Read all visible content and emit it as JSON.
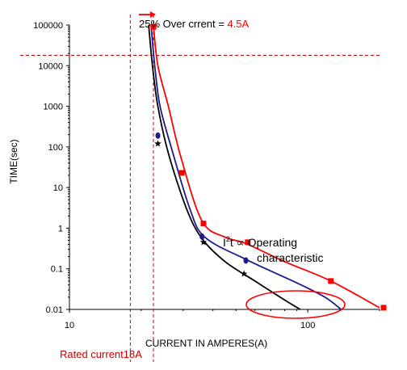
{
  "chart_data": {
    "type": "line",
    "xscale": "log",
    "yscale": "log",
    "xlim": [
      10,
      200
    ],
    "ylim": [
      0.01,
      100000
    ],
    "xlabel": "CURRENT IN AMPERES(A)",
    "ylabel": "TIME(sec)",
    "x_ticks": [
      {
        "value": 10,
        "label": "10"
      },
      {
        "value": 100,
        "label": "100"
      }
    ],
    "y_ticks": [
      {
        "value": 100000,
        "label": "100000"
      },
      {
        "value": 10000,
        "label": "10000"
      },
      {
        "value": 1000,
        "label": "1000"
      },
      {
        "value": 100,
        "label": "100"
      },
      {
        "value": 10,
        "label": "10"
      },
      {
        "value": 1,
        "label": "1"
      },
      {
        "value": 0.1,
        "label": "0.1"
      },
      {
        "value": 0.01,
        "label": "0.01"
      }
    ],
    "series": [
      {
        "color": "#ff0000",
        "marker": "square",
        "curve": [
          [
            22.5,
            100000
          ],
          [
            23.5,
            10000
          ],
          [
            26,
            1000
          ],
          [
            29.5,
            50
          ],
          [
            36,
            1.5
          ],
          [
            45,
            0.6
          ],
          [
            55,
            0.42
          ],
          [
            80,
            0.15
          ],
          [
            125,
            0.05
          ],
          [
            200,
            0.011
          ]
        ],
        "markers": [
          [
            22.5,
            90000
          ],
          [
            29.6,
            23
          ],
          [
            36.5,
            1.3
          ],
          [
            56,
            0.45
          ],
          [
            125,
            0.05
          ],
          [
            208,
            0.011
          ]
        ]
      },
      {
        "color": "#1c1c8c",
        "marker": "circle",
        "curve": [
          [
            22,
            100000
          ],
          [
            22.8,
            10000
          ],
          [
            24,
            1000
          ],
          [
            27,
            80
          ],
          [
            32,
            3
          ],
          [
            37,
            0.6
          ],
          [
            55,
            0.17
          ],
          [
            90,
            0.045
          ],
          [
            118,
            0.02
          ],
          [
            138,
            0.01
          ]
        ],
        "markers": [
          [
            23.5,
            190
          ],
          [
            36,
            0.62
          ],
          [
            55,
            0.16
          ]
        ]
      },
      {
        "color": "#000000",
        "marker": "star",
        "curve": [
          [
            21.5,
            100000
          ],
          [
            22.3,
            10000
          ],
          [
            23.5,
            1000
          ],
          [
            26,
            70
          ],
          [
            31,
            3
          ],
          [
            36,
            0.55
          ],
          [
            45,
            0.15
          ],
          [
            60,
            0.05
          ],
          [
            80,
            0.017
          ],
          [
            93,
            0.01
          ]
        ],
        "markers": [
          [
            23.5,
            120
          ],
          [
            36.5,
            0.45
          ],
          [
            54,
            0.075
          ]
        ]
      }
    ],
    "reference_lines": [
      {
        "type": "vertical",
        "x": 18,
        "color": "#cc0000"
      },
      {
        "type": "vertical",
        "x": 22.5,
        "color": "#cc0000"
      },
      {
        "type": "horizontal",
        "y": 18000,
        "color": "#cc0000"
      }
    ],
    "annotations": {
      "over_current_prefix": "25% Over crrent = ",
      "over_current_value": "4.5A",
      "rated_current": "Rated current18A",
      "i2t_base": "I",
      "i2t_sup": "2",
      "i2t_rest": "t ∝ Operating",
      "i2t_line2": "characteristic"
    },
    "colors": {
      "annotation_red": "#ff0000",
      "reference_lines": "#cc0000",
      "ellipse": "#ff0000"
    }
  }
}
